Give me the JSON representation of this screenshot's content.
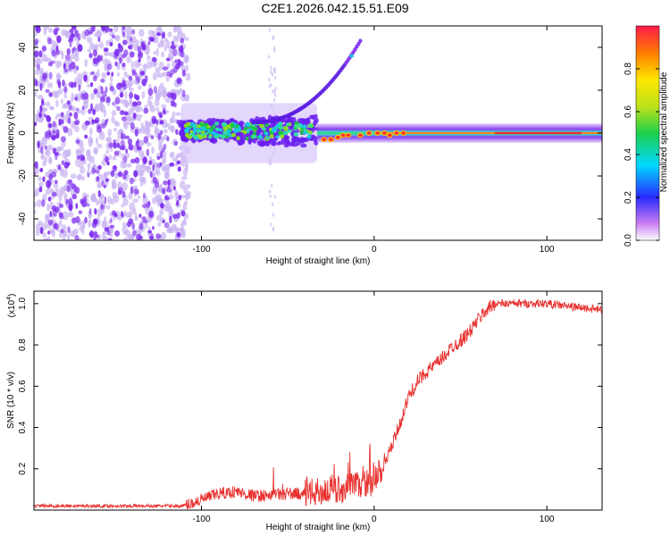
{
  "title": "C2E1.2026.042.15.51.E09",
  "chart_data": [
    {
      "type": "heatmap",
      "name": "spectrogram",
      "xlabel": "Height of straight line (km)",
      "ylabel": "Frequency (Hz)",
      "xlim": [
        -197,
        132
      ],
      "ylim": [
        -50,
        50
      ],
      "xticks": [
        -100,
        0,
        100
      ],
      "xtick_labels": [
        "-100",
        "0",
        "100"
      ],
      "yticks": [
        -40,
        -20,
        0,
        20,
        40
      ],
      "ytick_labels": [
        "-40",
        "-20",
        "0",
        "20",
        "40"
      ],
      "features": {
        "noise_region_km": [
          -197,
          -110
        ],
        "broad_band_km": [
          -112,
          -33
        ],
        "narrow_line_km": [
          -33,
          132
        ],
        "narrow_line_freq_hz": 0,
        "rising_arc": {
          "start_km": -70,
          "end_km": -8,
          "start_hz": 5,
          "end_hz": 43
        }
      },
      "colorbar": {
        "label": "Normalized spectral amplitude",
        "range": [
          0.0,
          1.0
        ],
        "ticks": [
          0.0,
          0.2,
          0.4,
          0.6,
          0.8
        ],
        "tick_labels": [
          "0.0",
          "0.2",
          "0.4",
          "0.6",
          "0.8"
        ]
      }
    },
    {
      "type": "line",
      "name": "snr",
      "xlabel": "Height of straight line (km)",
      "ylabel": "SNR (10 * v/v)",
      "exponent_label": "(x10",
      "exponent_power": "4",
      "exponent_close": ")",
      "xlim": [
        -197,
        132
      ],
      "ylim": [
        0.0,
        1.06
      ],
      "xticks": [
        -100,
        0,
        100
      ],
      "xtick_labels": [
        "-100",
        "0",
        "100"
      ],
      "yticks": [
        0.2,
        0.4,
        0.6,
        0.8,
        1.0
      ],
      "ytick_labels": [
        "0.2",
        "0.4",
        "0.6",
        "0.8",
        "1.0"
      ],
      "series": [
        {
          "name": "SNR",
          "color": "#e8312f",
          "x": [
            -197,
            -150,
            -110,
            -100,
            -90,
            -80,
            -70,
            -60,
            -50,
            -40,
            -30,
            -20,
            -10,
            0,
            5,
            10,
            15,
            20,
            25,
            30,
            35,
            40,
            45,
            50,
            55,
            60,
            65,
            70,
            80,
            90,
            100,
            110,
            120,
            132
          ],
          "y": [
            0.02,
            0.02,
            0.02,
            0.05,
            0.08,
            0.09,
            0.07,
            0.07,
            0.08,
            0.08,
            0.09,
            0.1,
            0.12,
            0.14,
            0.2,
            0.3,
            0.42,
            0.55,
            0.62,
            0.67,
            0.7,
            0.74,
            0.79,
            0.82,
            0.86,
            0.92,
            0.97,
            1.0,
            1.0,
            1.0,
            1.0,
            0.99,
            0.98,
            0.97
          ]
        }
      ]
    }
  ],
  "colors": {
    "line": "#e8312f",
    "axis": "#000000",
    "noise_dots": "#7d2cf0",
    "noise_faint": "#c9b3f2"
  }
}
